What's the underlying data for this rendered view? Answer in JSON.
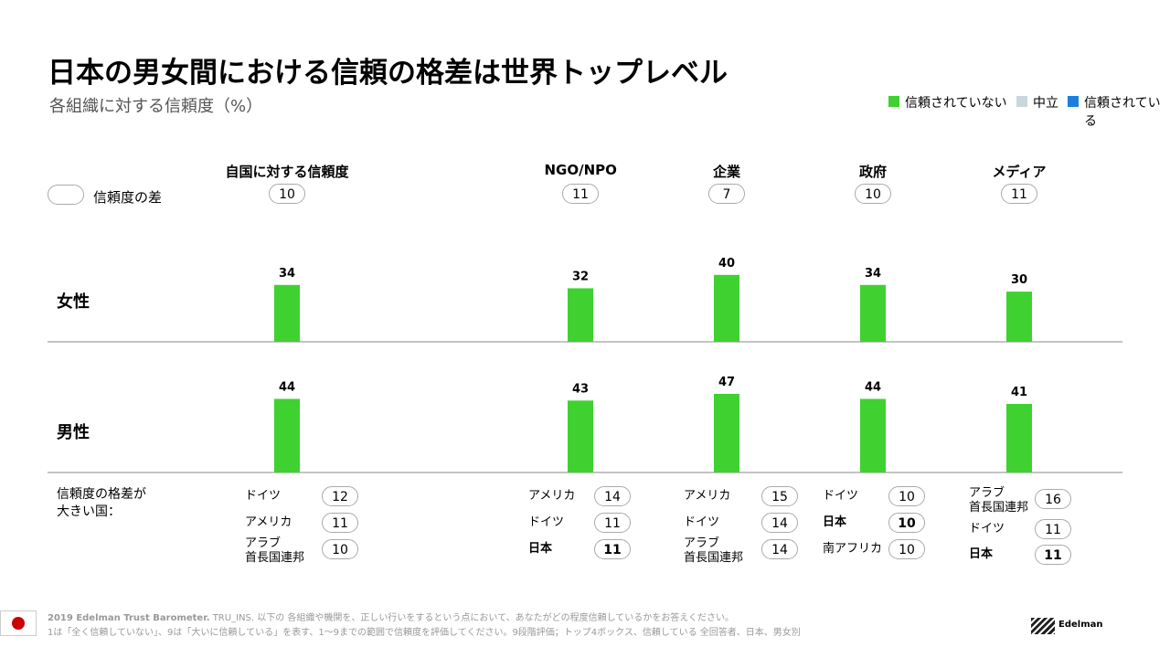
{
  "title": "日本の男女間における信頼の格差は世界トップレベル",
  "subtitle": "各組織に対する信頼度（%）",
  "legend": [
    {
      "name": "信頼されていない",
      "color": "#3fd130"
    },
    {
      "name": "中立",
      "color": "#c9d6dd"
    },
    {
      "name": "信頼されている",
      "color": "#1a7fe0"
    }
  ],
  "chart_data": {
    "type": "bar",
    "categories": [
      "自国に対する信頼度",
      "NGO/NPO",
      "企業",
      "政府",
      "メディア"
    ],
    "diff_label": "信頼度の差",
    "diffs": [
      10,
      11,
      7,
      10,
      11
    ],
    "series": [
      {
        "name": "女性",
        "color": "#3fd130",
        "values": [
          34,
          32,
          40,
          34,
          30
        ]
      },
      {
        "name": "男性",
        "color": "#3fd130",
        "values": [
          44,
          43,
          47,
          44,
          41
        ]
      }
    ]
  },
  "countries": {
    "label": "信頼度の格差が\n大きい国：",
    "columns": [
      [
        {
          "name": "ドイツ",
          "value": 12
        },
        {
          "name": "アメリカ",
          "value": 11
        },
        {
          "name": "アラブ\n首長国連邦",
          "value": 10
        }
      ],
      [],
      [
        {
          "name": "アメリカ",
          "value": 14
        },
        {
          "name": "ドイツ",
          "value": 11
        },
        {
          "name": "日本",
          "value": 11,
          "bold": true
        }
      ],
      [
        {
          "name": "アメリカ",
          "value": 15
        },
        {
          "name": "ドイツ",
          "value": 14
        },
        {
          "name": "アラブ\n首長国連邦",
          "value": 14
        }
      ],
      [
        {
          "name": "ドイツ",
          "value": 10
        },
        {
          "name": "日本",
          "value": 10,
          "bold": true
        },
        {
          "name": "南アフリカ",
          "value": 10
        }
      ],
      [
        {
          "name": "アラブ\n首長国連邦",
          "value": 16
        },
        {
          "name": "ドイツ",
          "value": 11
        },
        {
          "name": "日本",
          "value": 11,
          "bold": true
        }
      ]
    ]
  },
  "footer": {
    "source": "2019 Edelman Trust Barometer.",
    "line1": "TRU_INS. 以下の 各組織や機関を、正しい行いをするという点において、あなたがどの程度信頼しているかをお答えください。",
    "line2": "1は「全く信頼していない」、9は「大いに信頼している」を表す、1～9までの範囲で信頼度を評価してください。9段階評価；トップ4ボックス、信頼している 全回答者、日本、男女別",
    "logo": "Edelman"
  }
}
